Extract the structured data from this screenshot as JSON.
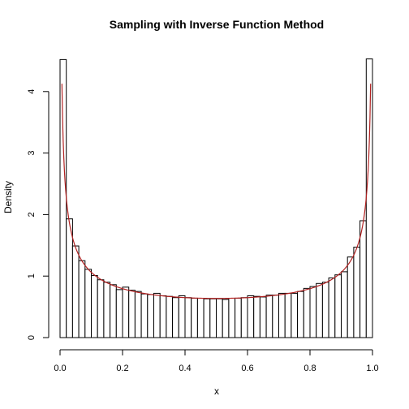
{
  "chart_data": {
    "type": "bar",
    "title": "Sampling with Inverse Function Method",
    "xlabel": "x",
    "ylabel": "Density",
    "xlim": [
      0,
      1
    ],
    "ylim": [
      0,
      4.6
    ],
    "x_ticks": [
      0.0,
      0.2,
      0.4,
      0.6,
      0.8,
      1.0
    ],
    "x_tick_labels": [
      "0.0",
      "0.2",
      "0.4",
      "0.6",
      "0.8",
      "1.0"
    ],
    "y_ticks": [
      0,
      1,
      2,
      3,
      4
    ],
    "y_tick_labels": [
      "0",
      "1",
      "2",
      "3",
      "4"
    ],
    "bin_width": 0.02,
    "histogram": {
      "bin_starts": [
        0.0,
        0.02,
        0.04,
        0.06,
        0.08,
        0.1,
        0.12,
        0.14,
        0.16,
        0.18,
        0.2,
        0.22,
        0.24,
        0.26,
        0.28,
        0.3,
        0.32,
        0.34,
        0.36,
        0.38,
        0.4,
        0.42,
        0.44,
        0.46,
        0.48,
        0.5,
        0.52,
        0.54,
        0.56,
        0.58,
        0.6,
        0.62,
        0.64,
        0.66,
        0.68,
        0.7,
        0.72,
        0.74,
        0.76,
        0.78,
        0.8,
        0.82,
        0.84,
        0.86,
        0.88,
        0.9,
        0.92,
        0.94,
        0.96,
        0.98
      ],
      "values": [
        4.52,
        1.93,
        1.49,
        1.25,
        1.11,
        1.01,
        0.94,
        0.9,
        0.86,
        0.78,
        0.82,
        0.77,
        0.75,
        0.71,
        0.7,
        0.72,
        0.68,
        0.67,
        0.65,
        0.68,
        0.65,
        0.64,
        0.64,
        0.63,
        0.63,
        0.63,
        0.62,
        0.64,
        0.64,
        0.65,
        0.68,
        0.67,
        0.66,
        0.69,
        0.69,
        0.72,
        0.72,
        0.72,
        0.75,
        0.8,
        0.83,
        0.88,
        0.9,
        0.97,
        1.02,
        1.07,
        1.31,
        1.47,
        1.9,
        4.53
      ]
    },
    "density_curve": {
      "color": "#b22222",
      "formula": "1/(pi*sqrt(x*(1-x)))"
    },
    "grid": false,
    "legend": "none"
  }
}
